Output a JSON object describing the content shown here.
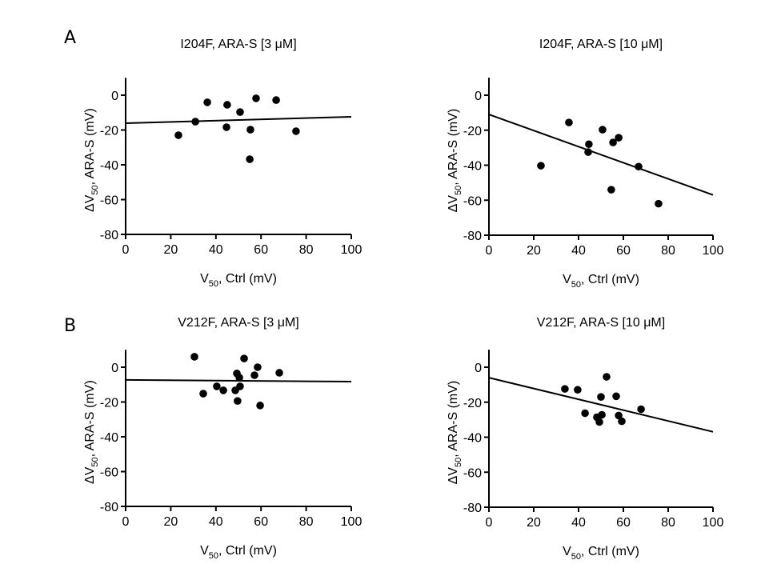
{
  "rows": [
    {
      "letter": "A"
    },
    {
      "letter": "B"
    }
  ],
  "chart_data": [
    {
      "type": "scatter",
      "panel": "A-left",
      "title": "I204F, ARA-S [3 μM]",
      "xlabel": "V50, Ctrl (mV)",
      "ylabel": "ΔV50, ARA-S (mV)",
      "xlim": [
        0,
        100
      ],
      "ylim": [
        -80,
        10
      ],
      "xticks": [
        0,
        20,
        40,
        60,
        80,
        100
      ],
      "yticks": [
        0,
        -20,
        -40,
        -60,
        -80
      ],
      "grid": false,
      "points": [
        [
          23.4,
          -23
        ],
        [
          30.9,
          -15.2
        ],
        [
          36.2,
          -4.1
        ],
        [
          45,
          -5.5
        ],
        [
          44.7,
          -18.4
        ],
        [
          50.7,
          -9.7
        ],
        [
          55.3,
          -19.8
        ],
        [
          57.8,
          -1.8
        ],
        [
          55,
          -36.8
        ],
        [
          66.7,
          -2.8
        ],
        [
          75.5,
          -20.7
        ]
      ],
      "fit_line": [
        [
          0,
          -16.1
        ],
        [
          100,
          -12.4
        ]
      ]
    },
    {
      "type": "scatter",
      "panel": "A-right",
      "title": "I204F, ARA-S [10 μM]",
      "xlabel": "V50, Ctrl (mV)",
      "ylabel": "ΔV50, ARA-S (mV)",
      "xlim": [
        0,
        100
      ],
      "ylim": [
        -80,
        10
      ],
      "xticks": [
        0,
        20,
        40,
        60,
        80,
        100
      ],
      "yticks": [
        0,
        -20,
        -40,
        -60,
        -80
      ],
      "grid": false,
      "points": [
        [
          23.2,
          -40.3
        ],
        [
          35.7,
          -15.6
        ],
        [
          44.6,
          -28
        ],
        [
          44.3,
          -32.5
        ],
        [
          50.7,
          -19.7
        ],
        [
          55.4,
          -27
        ],
        [
          57.9,
          -24.3
        ],
        [
          54.6,
          -54
        ],
        [
          66.8,
          -40.8
        ],
        [
          75.7,
          -62
        ]
      ],
      "fit_line": [
        [
          0,
          -11
        ],
        [
          100,
          -57
        ]
      ]
    },
    {
      "type": "scatter",
      "panel": "B-left",
      "title": "V212F, ARA-S [3 μM]",
      "xlabel": "V50, Ctrl (mV)",
      "ylabel": "ΔV50, ARA-S (mV)",
      "xlim": [
        0,
        100
      ],
      "ylim": [
        -80,
        10
      ],
      "xticks": [
        0,
        20,
        40,
        60,
        80,
        100
      ],
      "yticks": [
        0,
        -20,
        -40,
        -60,
        -80
      ],
      "grid": false,
      "points": [
        [
          30.5,
          6
        ],
        [
          34.4,
          -15.2
        ],
        [
          40.4,
          -11
        ],
        [
          43.3,
          -13.3
        ],
        [
          48.6,
          -13.3
        ],
        [
          50.7,
          -11
        ],
        [
          49.3,
          -3.6
        ],
        [
          50.4,
          -6
        ],
        [
          49.6,
          -19.4
        ],
        [
          52.5,
          5
        ],
        [
          57.1,
          -4.6
        ],
        [
          58.5,
          0
        ],
        [
          59.6,
          -22
        ],
        [
          68.1,
          -3.2
        ]
      ],
      "fit_line": [
        [
          0,
          -7.3
        ],
        [
          100,
          -8.3
        ]
      ]
    },
    {
      "type": "scatter",
      "panel": "B-right",
      "title": "V212F, ARA-S [10 μM]",
      "xlabel": "V50, Ctrl (mV)",
      "ylabel": "ΔV50, ARA-S (mV)",
      "xlim": [
        0,
        100
      ],
      "ylim": [
        -80,
        10
      ],
      "xticks": [
        0,
        20,
        40,
        60,
        80,
        100
      ],
      "yticks": [
        0,
        -20,
        -40,
        -60,
        -80
      ],
      "grid": false,
      "points": [
        [
          33.9,
          -12.4
        ],
        [
          39.6,
          -12.9
        ],
        [
          42.9,
          -26.3
        ],
        [
          48.2,
          -28.6
        ],
        [
          49.3,
          -31.3
        ],
        [
          50.4,
          -27.2
        ],
        [
          50,
          -17
        ],
        [
          52.5,
          -5.5
        ],
        [
          56.8,
          -16.6
        ],
        [
          57.9,
          -27.6
        ],
        [
          59.3,
          -30.9
        ],
        [
          67.9,
          -24
        ]
      ],
      "fit_line": [
        [
          0,
          -6
        ],
        [
          100,
          -36.9
        ]
      ]
    }
  ]
}
